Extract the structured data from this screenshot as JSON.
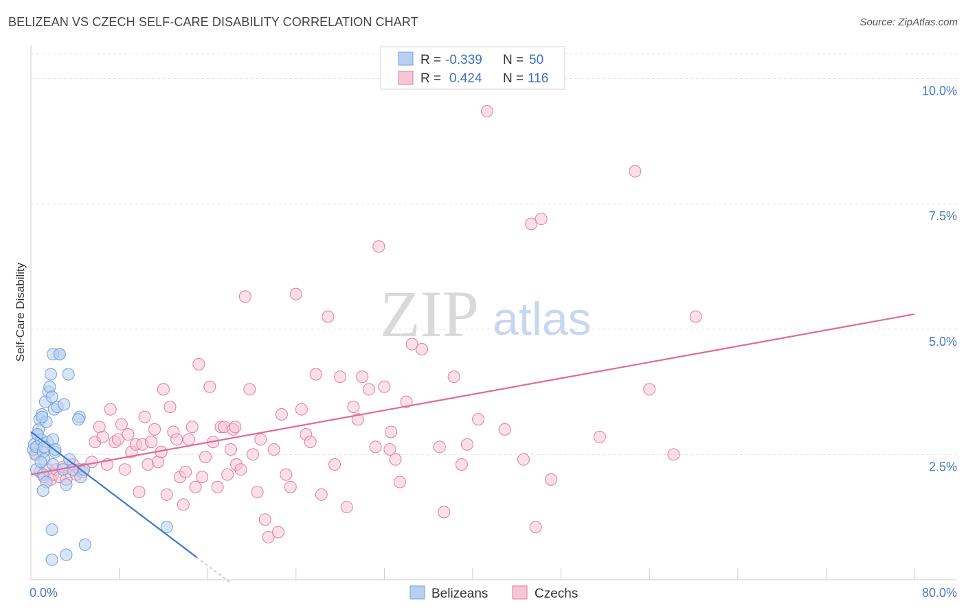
{
  "title": "BELIZEAN VS CZECH SELF-CARE DISABILITY CORRELATION CHART",
  "source": "Source: ZipAtlas.com",
  "watermark": {
    "zip": "ZIP",
    "atlas": "atlas"
  },
  "chart_data": {
    "type": "scatter",
    "title": "BELIZEAN VS CZECH SELF-CARE DISABILITY CORRELATION CHART",
    "xlabel": "",
    "ylabel": "Self-Care Disability",
    "xlim": [
      0,
      80
    ],
    "ylim": [
      0,
      10.5
    ],
    "x_tick_labels": [
      "0.0%",
      "80.0%"
    ],
    "y_ticks": [
      2.5,
      5.0,
      7.5,
      10.0
    ],
    "y_tick_labels": [
      "2.5%",
      "5.0%",
      "7.5%",
      "10.0%"
    ],
    "grid": "horizontal dashed",
    "legend_position": "top-center",
    "series": [
      {
        "name": "Belizeans",
        "color": "#6fa0dd",
        "fill": "#b8d0f0",
        "stats": {
          "r_label": "R =",
          "r": "-0.339",
          "n_label": "N =",
          "n": "50"
        },
        "trend": {
          "x": [
            0,
            15
          ],
          "y": [
            2.95,
            0.45
          ],
          "dashed_extension": {
            "x": [
              15,
              18
            ],
            "y": [
              0.45,
              -0.05
            ]
          }
        },
        "points": [
          [
            0.2,
            2.6
          ],
          [
            0.3,
            2.7
          ],
          [
            0.4,
            2.5
          ],
          [
            0.5,
            2.65
          ],
          [
            0.6,
            2.9
          ],
          [
            0.7,
            3.0
          ],
          [
            0.8,
            3.2
          ],
          [
            0.9,
            2.8
          ],
          [
            1.0,
            3.3
          ],
          [
            1.1,
            2.55
          ],
          [
            1.2,
            2.4
          ],
          [
            0.5,
            2.2
          ],
          [
            1.3,
            3.55
          ],
          [
            1.4,
            3.15
          ],
          [
            1.5,
            2.75
          ],
          [
            1.6,
            3.75
          ],
          [
            1.7,
            3.85
          ],
          [
            1.8,
            4.1
          ],
          [
            1.9,
            3.65
          ],
          [
            2.0,
            2.8
          ],
          [
            2.1,
            3.4
          ],
          [
            2.2,
            2.55
          ],
          [
            2.4,
            3.45
          ],
          [
            2.6,
            4.5
          ],
          [
            2.0,
            2.3
          ],
          [
            1.2,
            2.65
          ],
          [
            0.9,
            2.35
          ],
          [
            1.1,
            2.1
          ],
          [
            1.4,
            1.95
          ],
          [
            1.1,
            1.78
          ],
          [
            2.2,
            2.6
          ],
          [
            3.0,
            3.5
          ],
          [
            2.9,
            2.2
          ],
          [
            3.2,
            1.9
          ],
          [
            3.5,
            2.4
          ],
          [
            3.8,
            2.2
          ],
          [
            2.0,
            4.5
          ],
          [
            2.6,
            4.5
          ],
          [
            4.4,
            3.25
          ],
          [
            4.5,
            2.05
          ],
          [
            4.8,
            2.2
          ],
          [
            3.4,
            4.1
          ],
          [
            1.9,
            0.4
          ],
          [
            3.2,
            0.5
          ],
          [
            4.9,
            0.7
          ],
          [
            1.9,
            1.0
          ],
          [
            12.3,
            1.05
          ],
          [
            4.3,
            3.2
          ],
          [
            1.0,
            3.25
          ],
          [
            0.6,
            2.9
          ]
        ]
      },
      {
        "name": "Czechs",
        "color": "#e07aa0",
        "fill": "#f8c5d7",
        "stats": {
          "r_label": "R =",
          "r": "0.424",
          "n_label": "N =",
          "n": "116"
        },
        "trend": {
          "x": [
            0,
            80
          ],
          "y": [
            2.1,
            5.3
          ]
        },
        "points": [
          [
            0.5,
            2.5
          ],
          [
            0.8,
            2.15
          ],
          [
            1.2,
            2.05
          ],
          [
            1.5,
            2.2
          ],
          [
            1.8,
            2.0
          ],
          [
            2.0,
            2.1
          ],
          [
            2.3,
            2.2
          ],
          [
            2.6,
            2.05
          ],
          [
            2.9,
            2.25
          ],
          [
            3.2,
            2.0
          ],
          [
            3.5,
            2.15
          ],
          [
            3.8,
            2.3
          ],
          [
            4.1,
            2.1
          ],
          [
            4.4,
            2.2
          ],
          [
            4.7,
            2.15
          ],
          [
            5.5,
            2.35
          ],
          [
            5.8,
            2.75
          ],
          [
            6.2,
            3.05
          ],
          [
            6.5,
            2.85
          ],
          [
            6.9,
            2.3
          ],
          [
            7.2,
            3.4
          ],
          [
            7.6,
            2.75
          ],
          [
            7.9,
            2.8
          ],
          [
            8.2,
            3.1
          ],
          [
            8.5,
            2.2
          ],
          [
            8.8,
            2.9
          ],
          [
            9.1,
            2.55
          ],
          [
            9.5,
            2.7
          ],
          [
            9.8,
            1.75
          ],
          [
            10.1,
            2.7
          ],
          [
            10.3,
            3.25
          ],
          [
            10.6,
            2.3
          ],
          [
            10.9,
            2.75
          ],
          [
            11.2,
            3.0
          ],
          [
            11.5,
            2.35
          ],
          [
            11.8,
            2.55
          ],
          [
            12.0,
            3.8
          ],
          [
            12.3,
            1.7
          ],
          [
            12.6,
            3.45
          ],
          [
            12.9,
            2.95
          ],
          [
            13.2,
            2.8
          ],
          [
            13.5,
            2.05
          ],
          [
            13.8,
            1.5
          ],
          [
            14.0,
            2.15
          ],
          [
            14.3,
            2.8
          ],
          [
            14.6,
            3.05
          ],
          [
            14.9,
            1.85
          ],
          [
            15.2,
            4.3
          ],
          [
            15.5,
            2.05
          ],
          [
            15.8,
            2.45
          ],
          [
            16.2,
            3.85
          ],
          [
            16.5,
            2.75
          ],
          [
            16.9,
            1.85
          ],
          [
            17.2,
            3.05
          ],
          [
            17.5,
            3.05
          ],
          [
            17.8,
            2.1
          ],
          [
            18.1,
            2.6
          ],
          [
            18.3,
            3.0
          ],
          [
            18.6,
            2.3
          ],
          [
            19.0,
            2.2
          ],
          [
            19.4,
            5.65
          ],
          [
            19.8,
            3.8
          ],
          [
            20.1,
            2.5
          ],
          [
            20.5,
            1.75
          ],
          [
            20.8,
            2.8
          ],
          [
            21.2,
            1.2
          ],
          [
            21.5,
            0.85
          ],
          [
            22.0,
            2.6
          ],
          [
            22.4,
            0.95
          ],
          [
            22.7,
            3.3
          ],
          [
            23.1,
            2.1
          ],
          [
            23.5,
            1.85
          ],
          [
            24.0,
            5.7
          ],
          [
            24.5,
            3.4
          ],
          [
            24.9,
            2.9
          ],
          [
            25.3,
            2.75
          ],
          [
            25.8,
            4.1
          ],
          [
            26.3,
            1.7
          ],
          [
            26.9,
            5.25
          ],
          [
            27.5,
            2.3
          ],
          [
            28.0,
            4.05
          ],
          [
            28.6,
            1.45
          ],
          [
            29.2,
            3.45
          ],
          [
            29.6,
            3.2
          ],
          [
            30.0,
            4.05
          ],
          [
            30.6,
            3.8
          ],
          [
            31.2,
            2.65
          ],
          [
            31.5,
            6.65
          ],
          [
            32.0,
            3.85
          ],
          [
            32.5,
            2.6
          ],
          [
            33.0,
            2.4
          ],
          [
            33.4,
            1.95
          ],
          [
            34.0,
            3.55
          ],
          [
            34.5,
            4.7
          ],
          [
            35.4,
            4.6
          ],
          [
            37.0,
            2.65
          ],
          [
            37.4,
            1.35
          ],
          [
            38.3,
            4.05
          ],
          [
            39.0,
            2.3
          ],
          [
            39.5,
            2.7
          ],
          [
            40.5,
            3.2
          ],
          [
            41.3,
            9.35
          ],
          [
            42.9,
            3.0
          ],
          [
            44.6,
            2.4
          ],
          [
            45.3,
            7.1
          ],
          [
            45.7,
            1.05
          ],
          [
            46.2,
            7.2
          ],
          [
            47.1,
            2.0
          ],
          [
            51.5,
            2.85
          ],
          [
            54.7,
            8.15
          ],
          [
            56.0,
            3.8
          ],
          [
            58.2,
            2.5
          ],
          [
            60.2,
            5.25
          ],
          [
            32.6,
            2.95
          ],
          [
            18.5,
            3.05
          ]
        ]
      }
    ]
  }
}
